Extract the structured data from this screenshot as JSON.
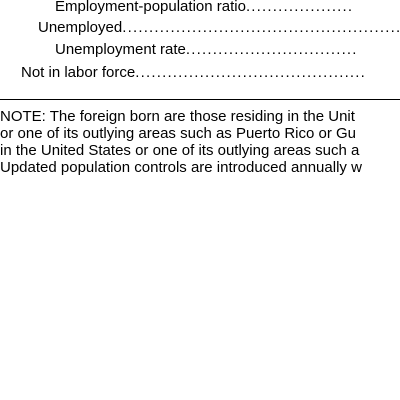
{
  "table": {
    "rows": [
      {
        "label": "Employment-population ratio",
        "leader": "...................."
      },
      {
        "label": "Unemployed",
        "leader": "......................................................"
      },
      {
        "label": "Unemployment rate",
        "leader": "................................"
      },
      {
        "label": "Not in labor force",
        "leader": "..........................................."
      }
    ]
  },
  "note": {
    "lines": [
      "NOTE: The foreign born are those residing in the Unit",
      "or one of its outlying areas such as Puerto Rico or Gu",
      "in the United States or one of its outlying areas such a",
      "Updated population controls are introduced annually w"
    ]
  }
}
